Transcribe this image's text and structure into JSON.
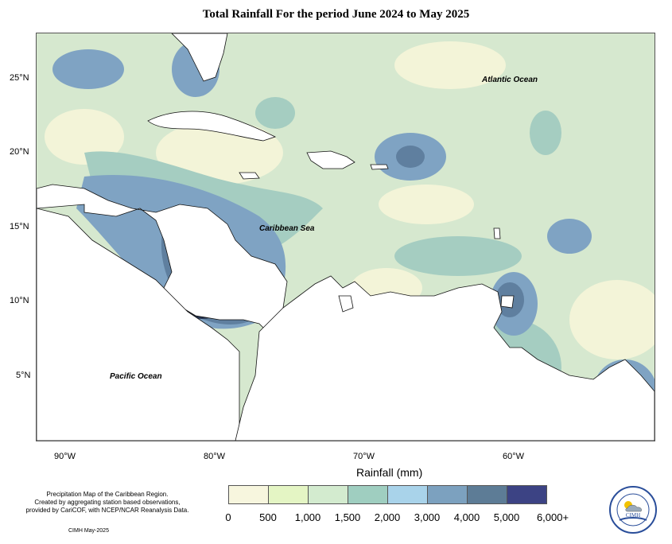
{
  "title": "Total Rainfall For the period June 2024 to May 2025",
  "y_ticks": [
    "25°N",
    "20°N",
    "15°N",
    "10°N",
    "5°N"
  ],
  "x_ticks": [
    "90°W",
    "80°W",
    "70°W",
    "60°W"
  ],
  "axis_title": "Rainfall (mm)",
  "ocean_labels": {
    "atlantic": "Atlantic Ocean",
    "caribbean": "Caribbean Sea",
    "pacific": "Pacific Ocean"
  },
  "legend": {
    "tick_labels": [
      "0",
      "500",
      "1,000",
      "1,500",
      "2,000",
      "3,000",
      "4,000",
      "5,000",
      "6,000+"
    ],
    "colors": [
      "#f7f6de",
      "#e4f5c4",
      "#d3ebcf",
      "#9fcec0",
      "#a9d3ea",
      "#7ca1bf",
      "#5d7c96",
      "#3c4384"
    ]
  },
  "credit_lines": [
    "Precipitation Map of the Caribbean Region.",
    "Created by aggregating station based observations,",
    "provided by CariCOF, with NCEP/NCAR Reanalysis Data."
  ],
  "credit_date": "CIMH May-2025",
  "logo_text": "CIMH"
}
